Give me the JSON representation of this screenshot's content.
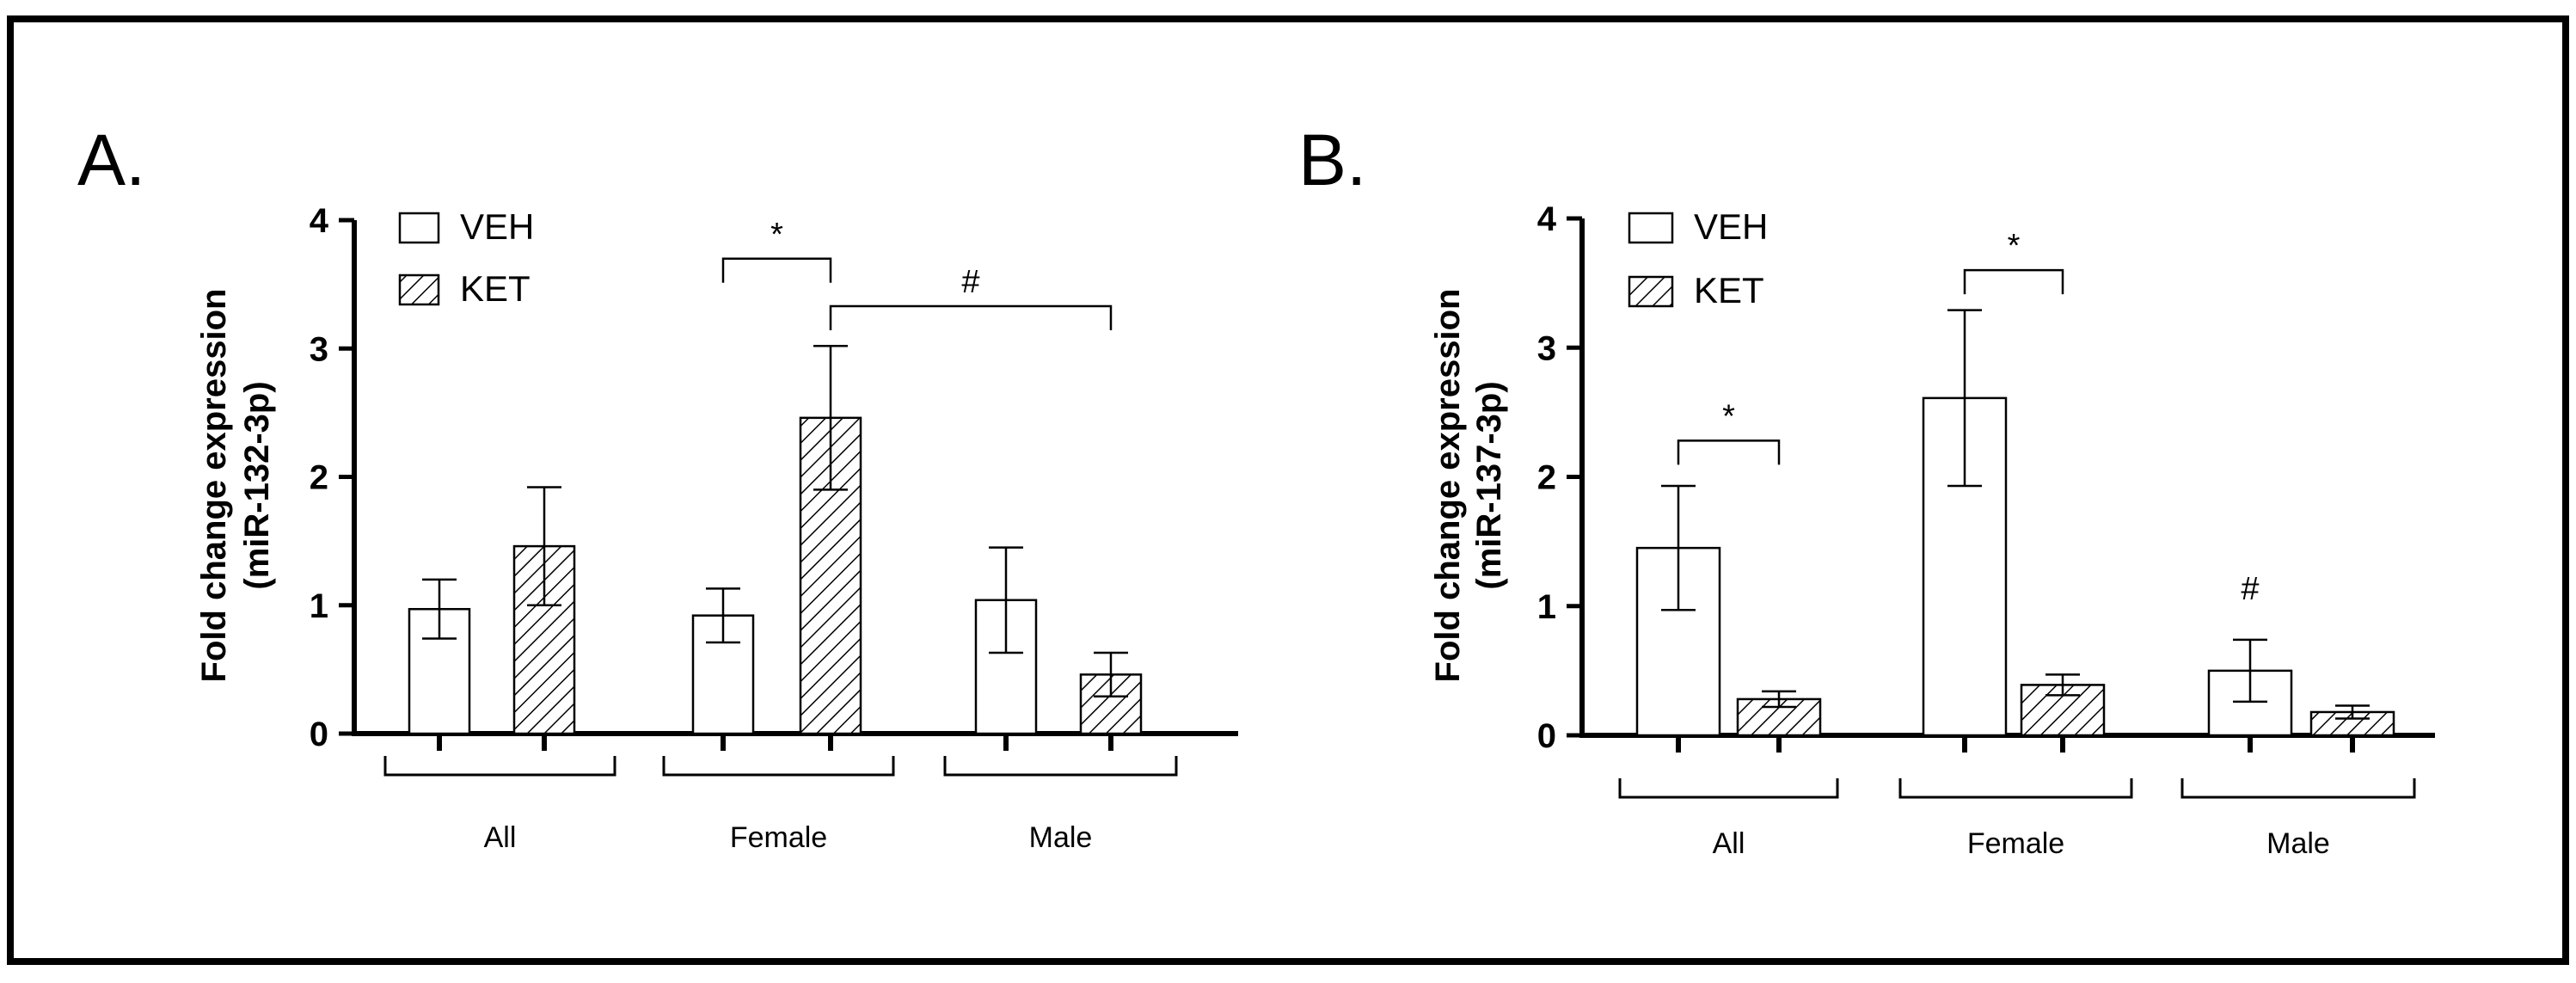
{
  "chart_data": [
    {
      "type": "bar",
      "panel_label": "A.",
      "ylabel_line1": "Fold change expression",
      "ylabel_line2": "(miR-132-3p)",
      "ylim": [
        0,
        4
      ],
      "yticks": [
        "0",
        "1",
        "2",
        "3",
        "4"
      ],
      "categories": [
        "All",
        "Female",
        "Male"
      ],
      "series": [
        {
          "name": "VEH",
          "pattern": "open",
          "values": [
            0.97,
            0.92,
            1.04
          ],
          "errors": [
            0.23,
            0.21,
            0.41
          ]
        },
        {
          "name": "KET",
          "pattern": "hatched",
          "values": [
            1.46,
            2.46,
            0.46
          ],
          "errors": [
            0.46,
            0.56,
            0.17
          ]
        }
      ],
      "annotations": [
        {
          "label": "*",
          "from": {
            "group": 1,
            "series": 0
          },
          "to": {
            "group": 1,
            "series": 1
          },
          "level": 3.7
        },
        {
          "label": "#",
          "from": {
            "group": 1,
            "series": 1
          },
          "to": {
            "group": 2,
            "series": 1
          },
          "level": 3.33
        }
      ]
    },
    {
      "type": "bar",
      "panel_label": "B.",
      "ylabel_line1": "Fold change expression",
      "ylabel_line2": "(miR-137-3p)",
      "ylim": [
        0,
        4
      ],
      "yticks": [
        "0",
        "1",
        "2",
        "3",
        "4"
      ],
      "categories": [
        "All",
        "Female",
        "Male"
      ],
      "series": [
        {
          "name": "VEH",
          "pattern": "open",
          "values": [
            1.45,
            2.61,
            0.5
          ],
          "errors": [
            0.48,
            0.68,
            0.24
          ]
        },
        {
          "name": "KET",
          "pattern": "hatched",
          "values": [
            0.28,
            0.39,
            0.18
          ],
          "errors": [
            0.06,
            0.08,
            0.05
          ]
        }
      ],
      "annotations": [
        {
          "label": "*",
          "from": {
            "group": 0,
            "series": 0
          },
          "to": {
            "group": 0,
            "series": 1
          },
          "level": 2.28
        },
        {
          "label": "*",
          "from": {
            "group": 1,
            "series": 0
          },
          "to": {
            "group": 1,
            "series": 1
          },
          "level": 3.6
        },
        {
          "label": "#",
          "from": {
            "group": 2,
            "series": 0
          },
          "to": null,
          "level": 1.05
        }
      ]
    }
  ]
}
